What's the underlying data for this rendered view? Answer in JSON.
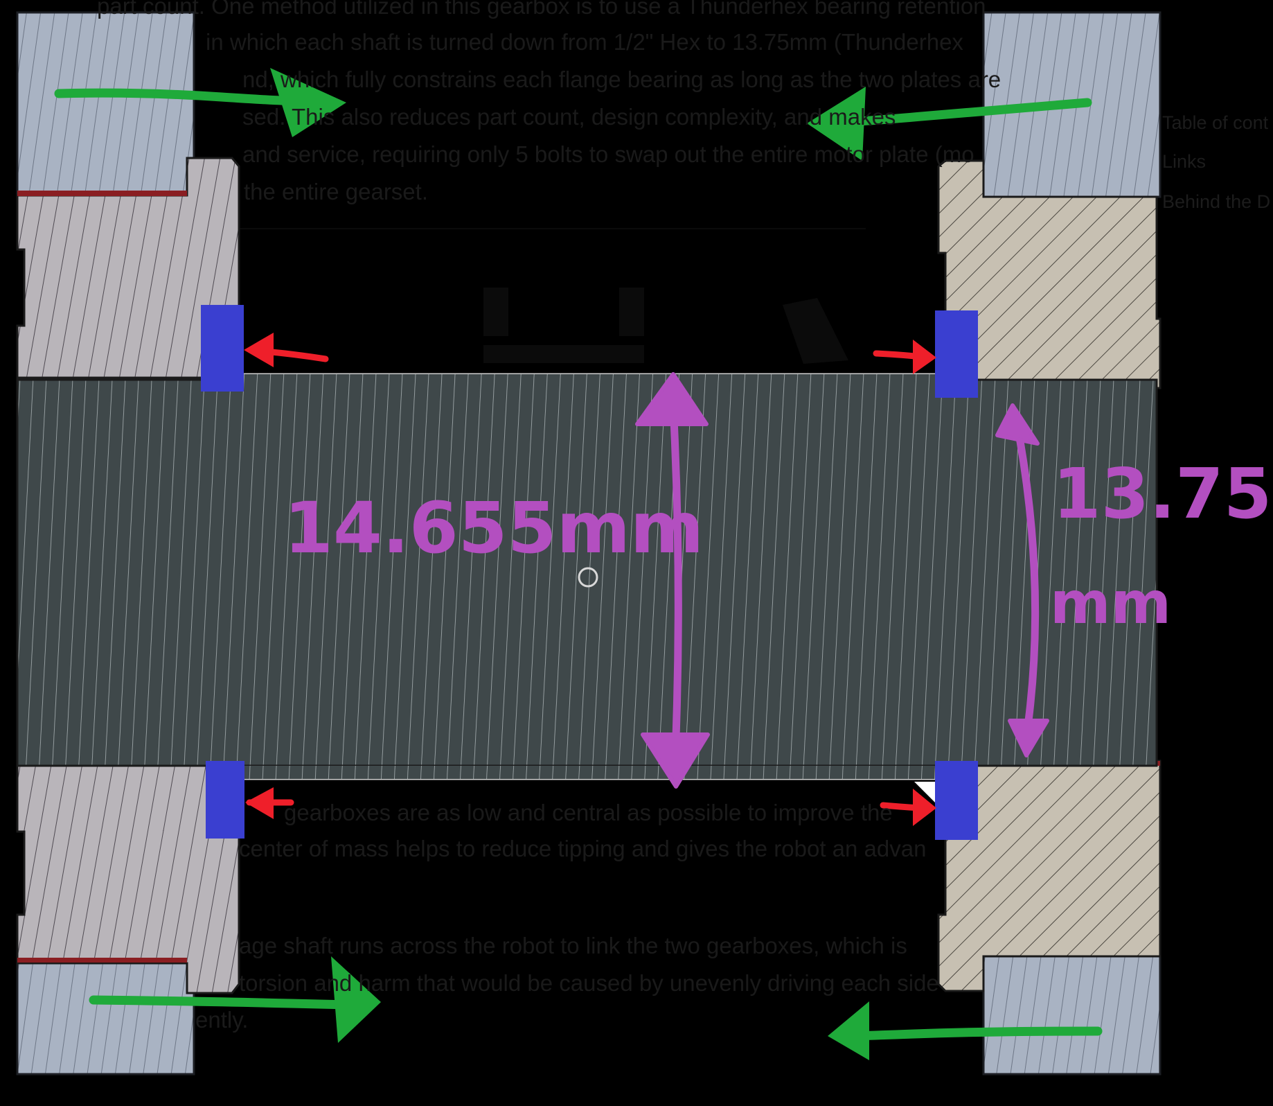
{
  "document_text": {
    "lines": [
      "part count. One method utilized in this gearbox is to use a Thunderhex bearing retention",
      "in which each shaft is turned down from 1/2\" Hex to 13.75mm (Thunderhex",
      "nd, which fully constrains each flange bearing as long as the two plates are",
      "sed. This also reduces part count, design complexity, and makes",
      "and service, requiring only 5 bolts to swap out the entire motor plate (mo",
      "the entire gearset.",
      "gearboxes are as low and central as possible to improve the",
      "center of mass helps to reduce tipping and gives the robot an advan",
      "age shaft runs across the robot to link the two gearboxes, which is",
      "torsion and harm that would be caused by unevenly driving each side",
      "ently."
    ]
  },
  "sidebar": {
    "items": [
      "Table of cont",
      "Links",
      "Behind the D"
    ]
  },
  "annotations": {
    "dim_outer": "14.655mm",
    "dim_inner_value": "13.75",
    "dim_inner_unit": "mm"
  },
  "colors": {
    "background": "#000000",
    "plate": "#a9b3c3",
    "hex_housing": "#b9b5ba",
    "shaft": "#3f484a",
    "flange_housing": "#c7c0b2",
    "bearing": "#3a3fd0",
    "green_arrows": "#1faa3a",
    "red_arrows": "#ef1f2a",
    "dimension": "#b34fc0"
  },
  "icons": {
    "cursor": "cursor-ring-icon"
  }
}
